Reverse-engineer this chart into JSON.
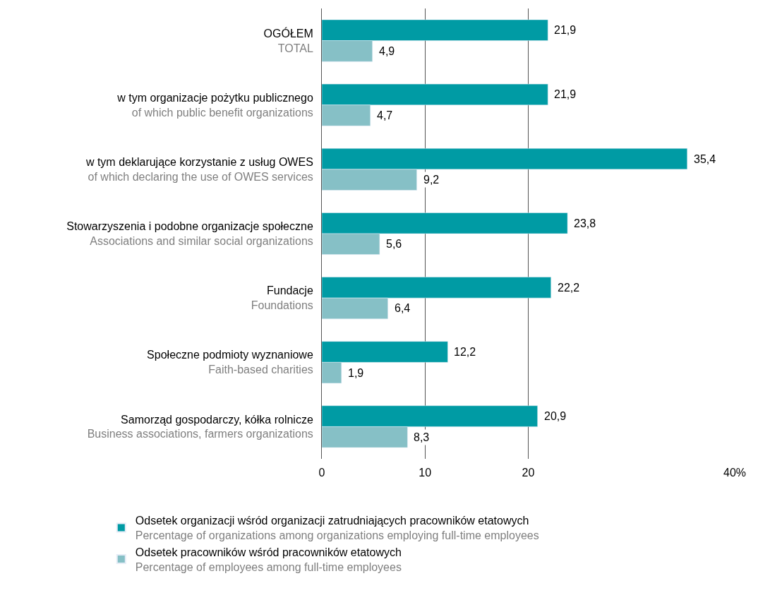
{
  "chart_data": {
    "type": "bar",
    "orientation": "horizontal",
    "categories": [
      "OGÓŁEM\nTOTAL",
      "w tym organizacje pożytku publicznego\nof which public benefit organizations",
      "w tym deklarujące korzystanie z usług OWES\nof which declaring the use of OWES services",
      "Stowarzyszenia i podobne organizacje społeczne\nAssociations and similar social organizations",
      "Fundacje\nFoundations",
      "Społeczne podmioty wyznaniowe\nFaith-based charities",
      "Samorząd gospodarczy, kółka rolnicze\nBusiness associations, farmers organizations"
    ],
    "series": [
      {
        "name": "Odsetek organizacji wśród organizacji zatrudniających pracowników etatowych\nPercentage of organizations among organizations employing full-time employees",
        "color": "#009ba4",
        "values": [
          21.9,
          21.9,
          35.4,
          23.8,
          22.2,
          12.2,
          20.9
        ],
        "value_labels": [
          "21,9",
          "21,9",
          "35,4",
          "23,8",
          "22,2",
          "12,2",
          "20,9"
        ]
      },
      {
        "name": "Odsetek pracowników wśród pracowników etatowych\nPercentage of employees among full-time employees",
        "color": "#86c0c6",
        "values": [
          4.9,
          4.7,
          9.2,
          5.6,
          6.4,
          1.9,
          8.3
        ],
        "value_labels": [
          "4,9",
          "4,7",
          "9,2",
          "5,6",
          "6,4",
          "1,9",
          "8,3"
        ]
      }
    ],
    "xlim": [
      0,
      40
    ],
    "xticks": [
      0,
      10,
      20,
      {
        "value": 40,
        "label": "40%"
      }
    ],
    "grid": "x",
    "legend": "bottom"
  }
}
